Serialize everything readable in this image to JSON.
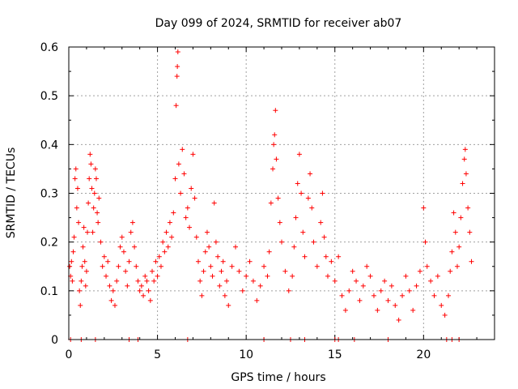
{
  "chart_data": {
    "type": "scatter",
    "title": "Day 099 of 2024, SRMTID for receiver ab07",
    "xlabel": "GPS time / hours",
    "ylabel": "SRMTID / TECUs",
    "xlim": [
      0,
      24
    ],
    "ylim": [
      0,
      0.6
    ],
    "x_ticks": [
      0,
      5,
      10,
      15,
      20
    ],
    "y_ticks": [
      0,
      0.1,
      0.2,
      0.3,
      0.4,
      0.5,
      0.6
    ],
    "x_tick_labels": [
      "0",
      "5",
      "10",
      "15",
      "20"
    ],
    "y_tick_labels": [
      "0",
      "0.1",
      "0.2",
      "0.3",
      "0.4",
      "0.5",
      "0.6"
    ],
    "grid": true,
    "marker": "+",
    "color": "#ff0000",
    "series": [
      {
        "name": "SRMTID",
        "points": [
          [
            0.05,
            0.15
          ],
          [
            0.1,
            0.13
          ],
          [
            0.15,
            0.16
          ],
          [
            0.2,
            0.12
          ],
          [
            0.25,
            0.18
          ],
          [
            0.3,
            0.21
          ],
          [
            0.35,
            0.33
          ],
          [
            0.4,
            0.35
          ],
          [
            0.45,
            0.27
          ],
          [
            0.5,
            0.31
          ],
          [
            0.55,
            0.24
          ],
          [
            0.6,
            0.1
          ],
          [
            0.65,
            0.07
          ],
          [
            0.7,
            0.12
          ],
          [
            0.75,
            0.15
          ],
          [
            0.8,
            0.19
          ],
          [
            0.85,
            0.23
          ],
          [
            0.9,
            0.16
          ],
          [
            0.95,
            0.11
          ],
          [
            1.0,
            0.14
          ],
          [
            1.05,
            0.22
          ],
          [
            1.1,
            0.28
          ],
          [
            1.15,
            0.33
          ],
          [
            1.2,
            0.38
          ],
          [
            1.25,
            0.36
          ],
          [
            1.3,
            0.31
          ],
          [
            1.35,
            0.22
          ],
          [
            1.4,
            0.27
          ],
          [
            1.45,
            0.3
          ],
          [
            1.5,
            0.35
          ],
          [
            1.55,
            0.33
          ],
          [
            1.6,
            0.26
          ],
          [
            1.65,
            0.24
          ],
          [
            1.7,
            0.29
          ],
          [
            1.8,
            0.2
          ],
          [
            1.9,
            0.15
          ],
          [
            2.0,
            0.17
          ],
          [
            2.1,
            0.13
          ],
          [
            2.2,
            0.16
          ],
          [
            2.3,
            0.11
          ],
          [
            2.4,
            0.08
          ],
          [
            2.5,
            0.1
          ],
          [
            2.6,
            0.07
          ],
          [
            2.7,
            0.12
          ],
          [
            2.8,
            0.15
          ],
          [
            2.9,
            0.19
          ],
          [
            3.0,
            0.21
          ],
          [
            3.1,
            0.18
          ],
          [
            3.2,
            0.14
          ],
          [
            3.3,
            0.11
          ],
          [
            3.4,
            0.16
          ],
          [
            3.5,
            0.22
          ],
          [
            3.6,
            0.24
          ],
          [
            3.7,
            0.19
          ],
          [
            3.8,
            0.15
          ],
          [
            3.9,
            0.12
          ],
          [
            4.0,
            0.1
          ],
          [
            4.1,
            0.11
          ],
          [
            4.2,
            0.09
          ],
          [
            4.3,
            0.13
          ],
          [
            4.4,
            0.12
          ],
          [
            4.5,
            0.1
          ],
          [
            4.6,
            0.08
          ],
          [
            4.7,
            0.14
          ],
          [
            4.8,
            0.12
          ],
          [
            4.9,
            0.16
          ],
          [
            5.0,
            0.13
          ],
          [
            5.1,
            0.17
          ],
          [
            5.2,
            0.15
          ],
          [
            5.3,
            0.2
          ],
          [
            5.4,
            0.18
          ],
          [
            5.5,
            0.22
          ],
          [
            5.6,
            0.19
          ],
          [
            5.7,
            0.24
          ],
          [
            5.8,
            0.21
          ],
          [
            5.9,
            0.26
          ],
          [
            6.0,
            0.33
          ],
          [
            6.05,
            0.48
          ],
          [
            6.1,
            0.54
          ],
          [
            6.12,
            0.56
          ],
          [
            6.15,
            0.59
          ],
          [
            6.2,
            0.36
          ],
          [
            6.3,
            0.3
          ],
          [
            6.4,
            0.39
          ],
          [
            6.5,
            0.34
          ],
          [
            6.6,
            0.25
          ],
          [
            6.7,
            0.27
          ],
          [
            6.8,
            0.23
          ],
          [
            6.9,
            0.31
          ],
          [
            7.0,
            0.38
          ],
          [
            7.1,
            0.29
          ],
          [
            7.2,
            0.21
          ],
          [
            7.3,
            0.16
          ],
          [
            7.4,
            0.12
          ],
          [
            7.5,
            0.09
          ],
          [
            7.6,
            0.14
          ],
          [
            7.7,
            0.18
          ],
          [
            7.8,
            0.22
          ],
          [
            7.9,
            0.19
          ],
          [
            8.0,
            0.15
          ],
          [
            8.1,
            0.13
          ],
          [
            8.2,
            0.28
          ],
          [
            8.3,
            0.2
          ],
          [
            8.4,
            0.17
          ],
          [
            8.5,
            0.11
          ],
          [
            8.6,
            0.14
          ],
          [
            8.7,
            0.16
          ],
          [
            8.8,
            0.09
          ],
          [
            8.9,
            0.12
          ],
          [
            9.0,
            0.07
          ],
          [
            9.2,
            0.15
          ],
          [
            9.4,
            0.19
          ],
          [
            9.6,
            0.14
          ],
          [
            9.8,
            0.1
          ],
          [
            10.0,
            0.13
          ],
          [
            10.2,
            0.16
          ],
          [
            10.4,
            0.12
          ],
          [
            10.6,
            0.08
          ],
          [
            10.8,
            0.11
          ],
          [
            11.0,
            0.15
          ],
          [
            11.2,
            0.13
          ],
          [
            11.3,
            0.18
          ],
          [
            11.4,
            0.28
          ],
          [
            11.5,
            0.35
          ],
          [
            11.55,
            0.4
          ],
          [
            11.6,
            0.42
          ],
          [
            11.65,
            0.47
          ],
          [
            11.7,
            0.37
          ],
          [
            11.8,
            0.29
          ],
          [
            11.9,
            0.24
          ],
          [
            12.0,
            0.2
          ],
          [
            12.2,
            0.14
          ],
          [
            12.4,
            0.1
          ],
          [
            12.6,
            0.13
          ],
          [
            12.7,
            0.19
          ],
          [
            12.8,
            0.25
          ],
          [
            12.9,
            0.32
          ],
          [
            13.0,
            0.38
          ],
          [
            13.1,
            0.3
          ],
          [
            13.2,
            0.22
          ],
          [
            13.3,
            0.17
          ],
          [
            13.5,
            0.29
          ],
          [
            13.6,
            0.34
          ],
          [
            13.7,
            0.27
          ],
          [
            13.8,
            0.2
          ],
          [
            14.0,
            0.15
          ],
          [
            14.2,
            0.24
          ],
          [
            14.3,
            0.3
          ],
          [
            14.4,
            0.21
          ],
          [
            14.5,
            0.17
          ],
          [
            14.6,
            0.13
          ],
          [
            14.8,
            0.16
          ],
          [
            15.0,
            0.12
          ],
          [
            15.2,
            0.17
          ],
          [
            15.4,
            0.09
          ],
          [
            15.6,
            0.06
          ],
          [
            15.8,
            0.1
          ],
          [
            16.0,
            0.14
          ],
          [
            16.2,
            0.12
          ],
          [
            16.4,
            0.08
          ],
          [
            16.6,
            0.11
          ],
          [
            16.8,
            0.15
          ],
          [
            17.0,
            0.13
          ],
          [
            17.2,
            0.09
          ],
          [
            17.4,
            0.06
          ],
          [
            17.6,
            0.1
          ],
          [
            17.8,
            0.12
          ],
          [
            18.0,
            0.08
          ],
          [
            18.2,
            0.11
          ],
          [
            18.4,
            0.07
          ],
          [
            18.6,
            0.04
          ],
          [
            18.8,
            0.09
          ],
          [
            19.0,
            0.13
          ],
          [
            19.2,
            0.1
          ],
          [
            19.4,
            0.06
          ],
          [
            19.6,
            0.11
          ],
          [
            19.8,
            0.14
          ],
          [
            20.0,
            0.27
          ],
          [
            20.1,
            0.2
          ],
          [
            20.2,
            0.15
          ],
          [
            20.4,
            0.12
          ],
          [
            20.6,
            0.09
          ],
          [
            20.8,
            0.13
          ],
          [
            21.0,
            0.07
          ],
          [
            21.2,
            0.05
          ],
          [
            21.4,
            0.09
          ],
          [
            21.5,
            0.14
          ],
          [
            21.6,
            0.18
          ],
          [
            21.7,
            0.26
          ],
          [
            21.8,
            0.22
          ],
          [
            21.9,
            0.15
          ],
          [
            22.0,
            0.19
          ],
          [
            22.1,
            0.25
          ],
          [
            22.2,
            0.32
          ],
          [
            22.3,
            0.37
          ],
          [
            22.35,
            0.39
          ],
          [
            22.4,
            0.34
          ],
          [
            22.5,
            0.27
          ],
          [
            22.6,
            0.22
          ],
          [
            22.7,
            0.16
          ]
        ]
      }
    ],
    "gap_markers_x": [
      0.1,
      0.7,
      1.5,
      3.4,
      3.9,
      6.7,
      11.0,
      12.5,
      13.3,
      15.0,
      15.2,
      16.1,
      18.0,
      21.3,
      21.6,
      22.0
    ]
  }
}
